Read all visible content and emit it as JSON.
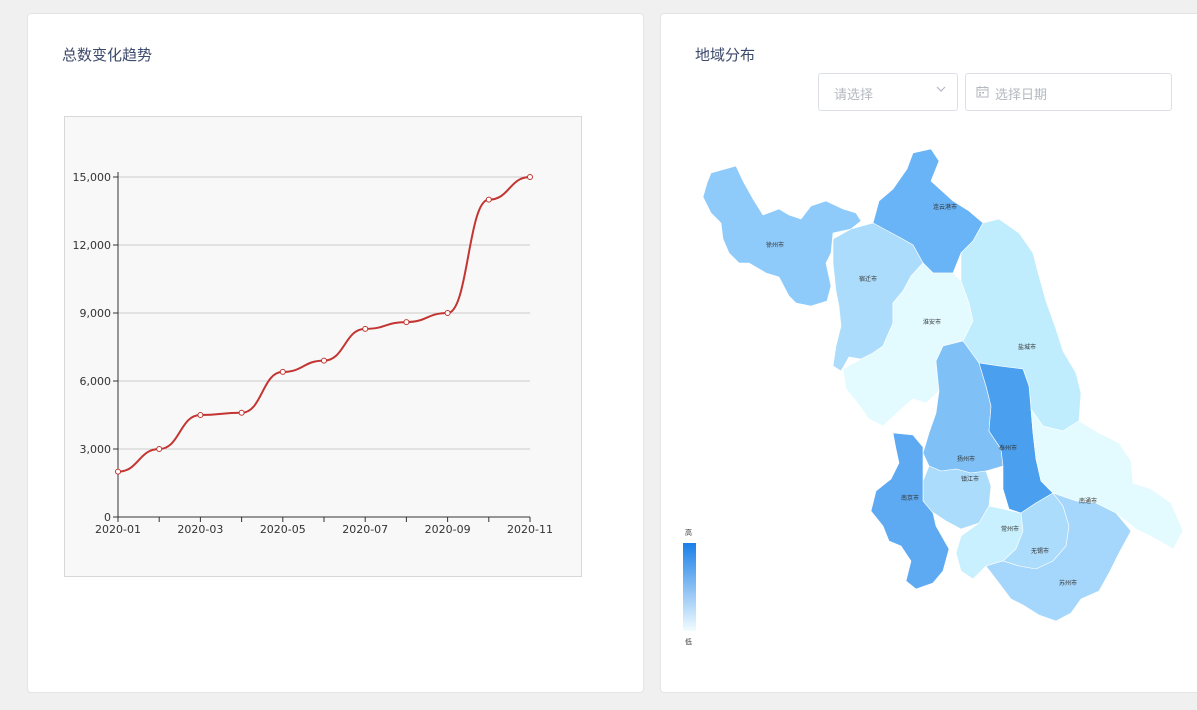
{
  "trend_card": {
    "title": "总数变化趋势"
  },
  "map_card": {
    "title": "地域分布",
    "select_placeholder": "请选择",
    "date_placeholder": "选择日期",
    "legend": {
      "high": "高",
      "low": "低"
    },
    "regions": [
      {
        "key": "xuzhou",
        "name": "徐州市",
        "color": "#8ecbfa"
      },
      {
        "key": "lianyungang",
        "name": "连云港市",
        "color": "#69b4f6"
      },
      {
        "key": "suqian",
        "name": "宿迁市",
        "color": "#acdcfb"
      },
      {
        "key": "huaian",
        "name": "淮安市",
        "color": "#e3fbff"
      },
      {
        "key": "yancheng",
        "name": "盐城市",
        "color": "#c0edfe"
      },
      {
        "key": "yangzhou",
        "name": "扬州市",
        "color": "#7fc1f7"
      },
      {
        "key": "taizhou",
        "name": "泰州市",
        "color": "#4aa0ef"
      },
      {
        "key": "nantong",
        "name": "南通市",
        "color": "#e3fbff"
      },
      {
        "key": "zhenjiang",
        "name": "镇江市",
        "color": "#acdcfb"
      },
      {
        "key": "nanjing",
        "name": "南京市",
        "color": "#5eaaf2"
      },
      {
        "key": "changzhou",
        "name": "常州市",
        "color": "#c9f0fe"
      },
      {
        "key": "wuxi",
        "name": "无锡市",
        "color": "#acdcfb"
      },
      {
        "key": "suzhou",
        "name": "苏州市",
        "color": "#a5d6fb"
      }
    ]
  },
  "chart_data": {
    "type": "line",
    "title": "",
    "xlabel": "",
    "ylabel": "",
    "categories": [
      "2020-01",
      "2020-02",
      "2020-03",
      "2020-04",
      "2020-05",
      "2020-06",
      "2020-07",
      "2020-08",
      "2020-09",
      "2020-10",
      "2020-11"
    ],
    "x_tick_labels": [
      "2020-01",
      "2020-03",
      "2020-05",
      "2020-07",
      "2020-09",
      "2020-11"
    ],
    "y_tick_labels": [
      "0",
      "3,000",
      "6,000",
      "9,000",
      "12,000",
      "15,000"
    ],
    "y_ticks": [
      0,
      3000,
      6000,
      9000,
      12000,
      15000
    ],
    "ylim": [
      0,
      15000
    ],
    "grid": true,
    "series": [
      {
        "values": [
          2000,
          3000,
          4500,
          4600,
          6400,
          6900,
          8300,
          8600,
          9000,
          14000,
          15000
        ],
        "color": "#c23531"
      }
    ]
  }
}
